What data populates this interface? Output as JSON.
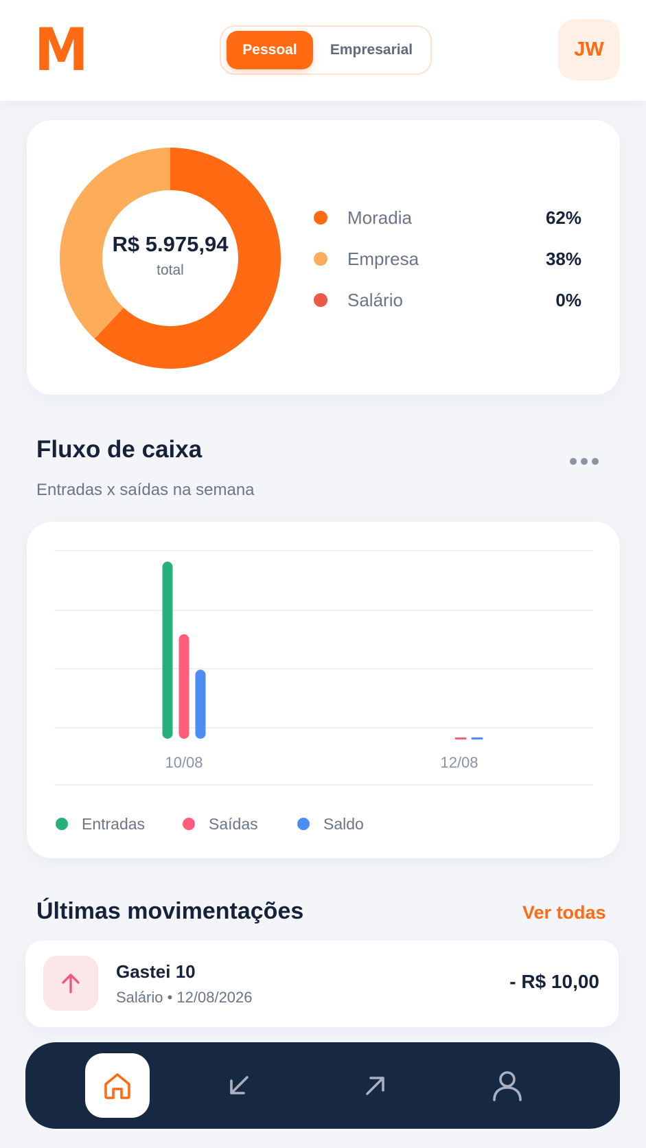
{
  "header": {
    "logo": "M",
    "tabs": [
      {
        "label": "Pessoal",
        "active": true
      },
      {
        "label": "Empresarial",
        "active": false
      }
    ],
    "avatar_initials": "JW"
  },
  "summary": {
    "total_value": "R$ 5.975,94",
    "total_label": "total",
    "categories": [
      {
        "label": "Moradia",
        "percent": "62%",
        "share": 62,
        "color": "#ff6a13"
      },
      {
        "label": "Empresa",
        "percent": "38%",
        "share": 38,
        "color": "#fdad5a"
      },
      {
        "label": "Salário",
        "percent": "0%",
        "share": 0,
        "color": "#ec5a45"
      }
    ]
  },
  "cashflow": {
    "title": "Fluxo de caixa",
    "subtitle": "Entradas x saídas na semana",
    "more_icon": "more-horizontal-icon"
  },
  "chart_data": {
    "type": "bar",
    "categories": [
      "10/08",
      "12/08"
    ],
    "series": [
      {
        "name": "Entradas",
        "color": "#27b07c",
        "values": [
          100,
          0
        ]
      },
      {
        "name": "Saídas",
        "color": "#ff5d7a",
        "values": [
          59,
          0.6
        ]
      },
      {
        "name": "Saldo",
        "color": "#4c8cf3",
        "values": [
          39,
          0.6
        ]
      }
    ],
    "ylim": [
      0,
      100
    ],
    "grid": true,
    "legend": "bottom"
  },
  "transactions": {
    "title": "Últimas movimentações",
    "view_all": "Ver todas",
    "items": [
      {
        "title": "Gastei 10",
        "category": "Salário",
        "date": "12/08/2026",
        "meta": "Salário • 12/08/2026",
        "amount": "- R$ 10,00",
        "icon": "arrow-up-icon"
      }
    ]
  },
  "nav": {
    "items": [
      {
        "name": "home",
        "icon": "home-icon",
        "active": true
      },
      {
        "name": "incoming",
        "icon": "arrow-down-left-icon",
        "active": false
      },
      {
        "name": "outgoing",
        "icon": "arrow-up-right-icon",
        "active": false
      },
      {
        "name": "profile",
        "icon": "user-icon",
        "active": false
      }
    ]
  }
}
